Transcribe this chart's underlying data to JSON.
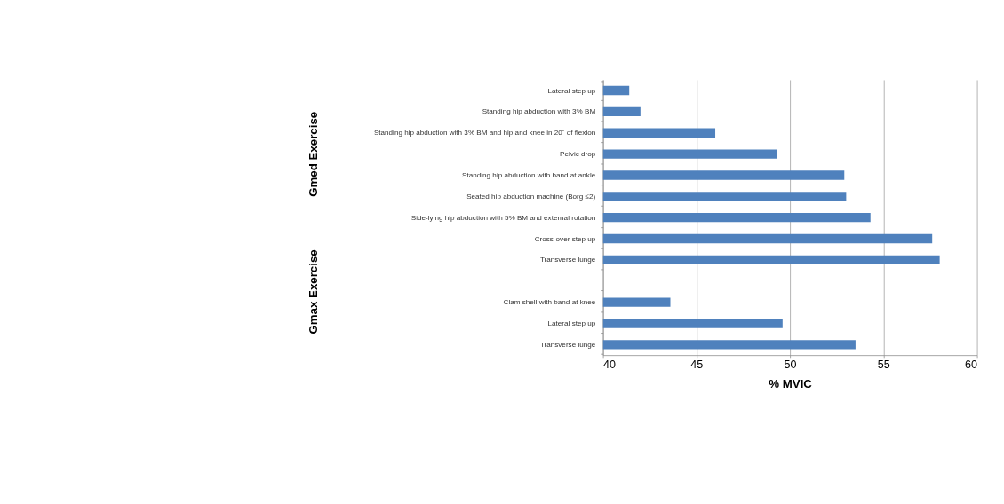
{
  "chart_data": {
    "type": "bar",
    "orientation": "horizontal",
    "xlabel": "% MVIC",
    "categories": [
      "Lateral step up",
      "Standing hip abduction with 3% BM",
      "Standing hip abduction with 3% BM and  hip and knee in 20˚ of flexion",
      "Pelvic drop",
      "Standing hip abduction with band at ankle",
      "Seated hip abduction machine (Borg ≤2)",
      "Side-lying hip abduction with 5% BM and external rotation",
      "Cross-over step up",
      "Transverse lunge",
      null,
      "Clam shell with band at knee",
      "Lateral step up",
      "Transverse lunge"
    ],
    "values": [
      41.4,
      42.0,
      46.0,
      49.3,
      52.9,
      53.0,
      54.3,
      57.6,
      58.0,
      null,
      43.6,
      49.6,
      53.5
    ],
    "color": "#4f81bd",
    "xlim": [
      40,
      60
    ],
    "xticks": [
      40,
      45,
      50,
      55,
      60
    ],
    "grid": "x",
    "annotations": [
      "Gmed Exercise",
      "Gmax Exercise"
    ]
  }
}
